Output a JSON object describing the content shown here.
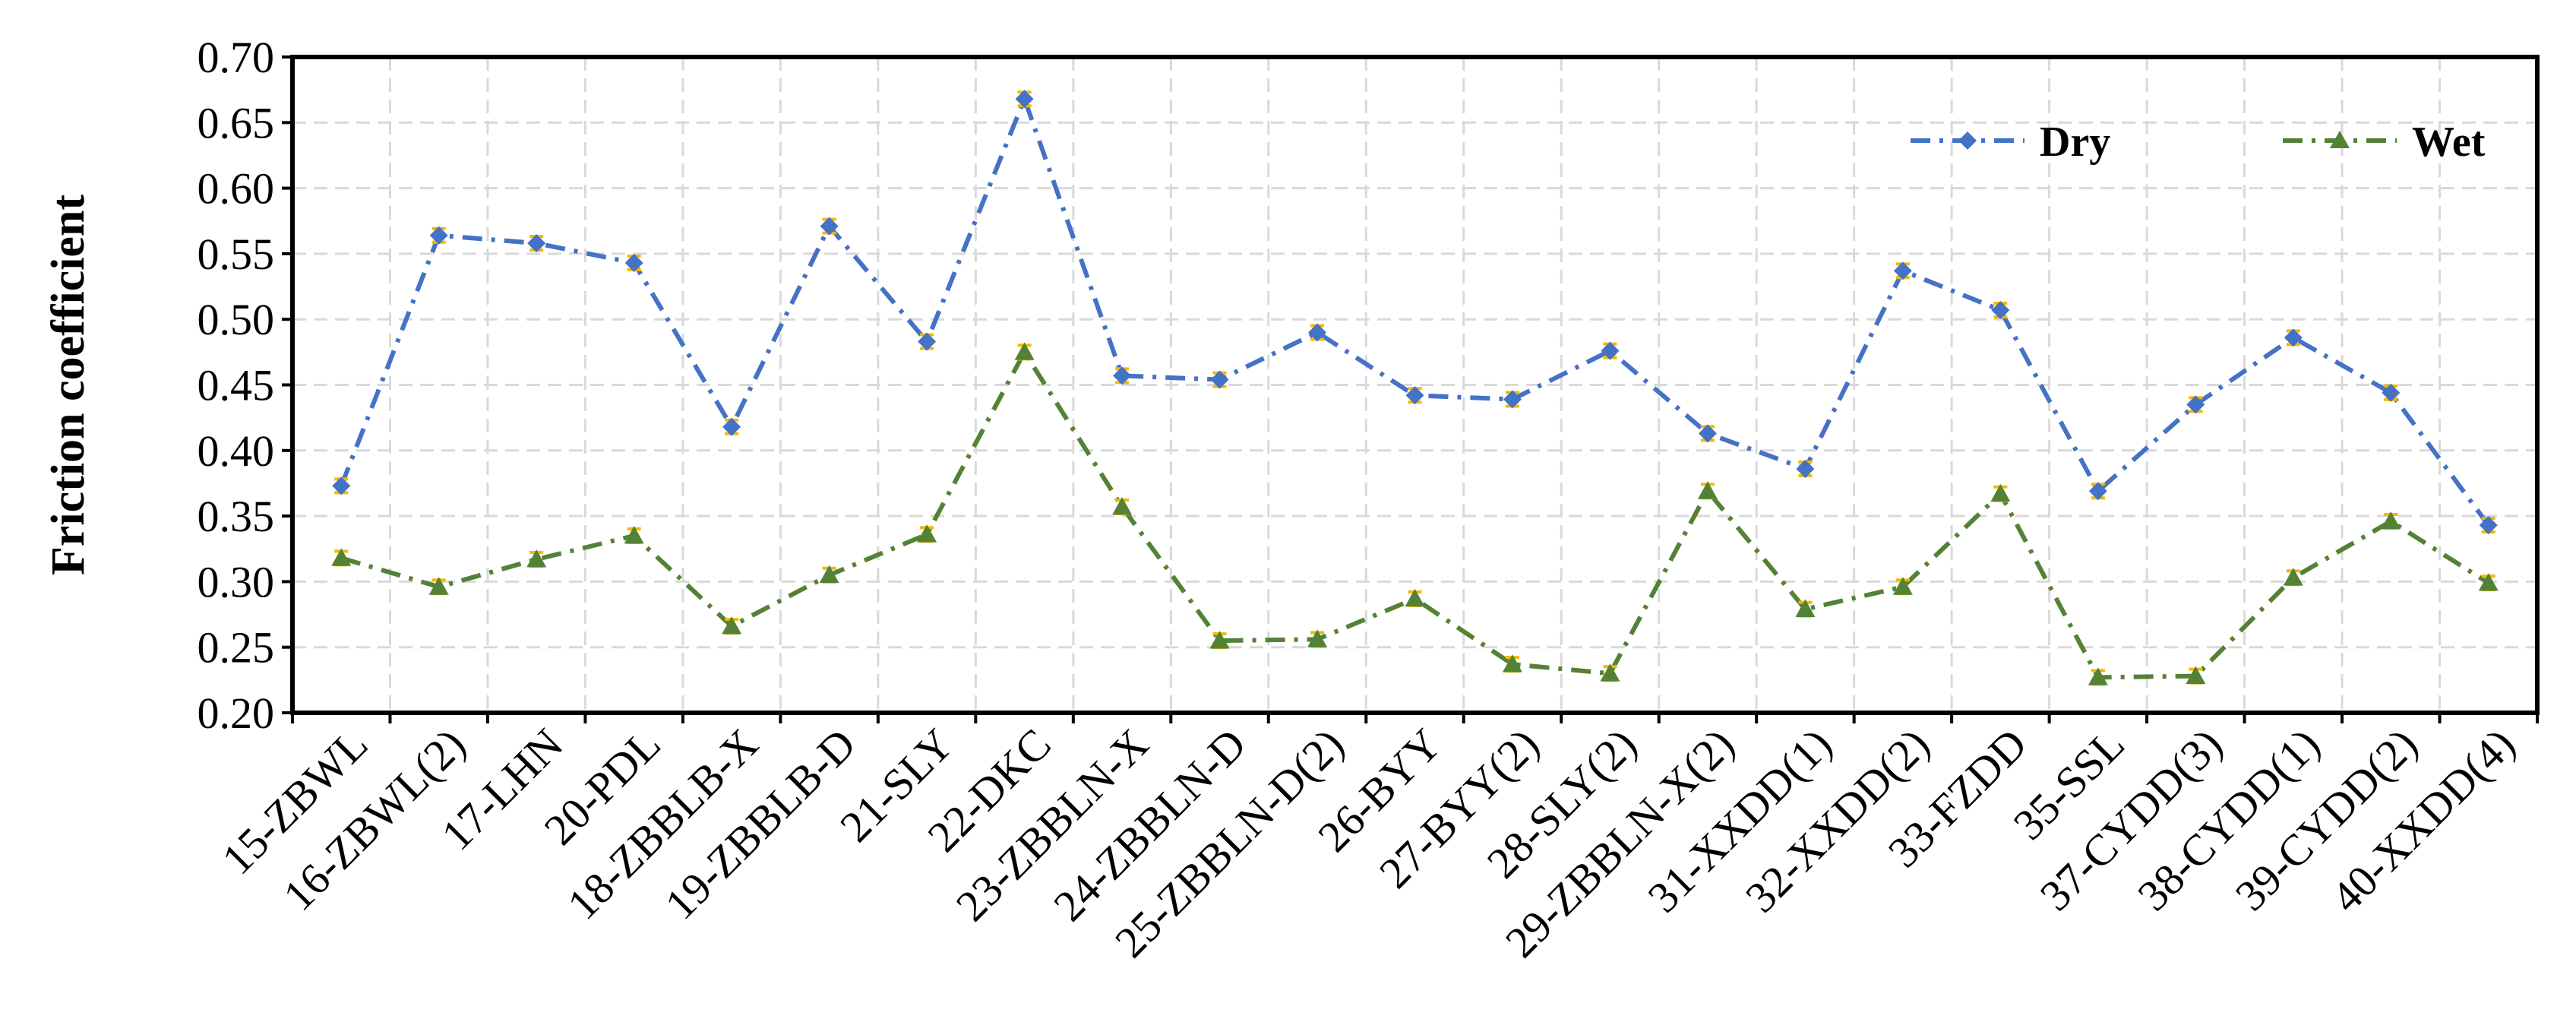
{
  "chart_data": {
    "type": "line",
    "title": "",
    "xlabel": "",
    "ylabel": "Friction coefficient",
    "ylim": [
      0.2,
      0.7
    ],
    "yticks": [
      "0.20",
      "0.25",
      "0.30",
      "0.35",
      "0.40",
      "0.45",
      "0.50",
      "0.55",
      "0.60",
      "0.65",
      "0.70"
    ],
    "grid": true,
    "legend_position": "top-right",
    "categories": [
      "15-ZBWL",
      "16-ZBWL(2)",
      "17-LHN",
      "20-PDL",
      "18-ZBBLB-X",
      "19-ZBBLB-D",
      "21-SLY",
      "22-DKC",
      "23-ZBBLN-X",
      "24-ZBBLN-D",
      "25-ZBBLN-D(2)",
      "26-BYY",
      "27-BYY(2)",
      "28-SLY(2)",
      "29-ZBBLN-X(2)",
      "31-XXDD(1)",
      "32-XXDD(2)",
      "33-FZDD",
      "35-SSL",
      "37-CYDD(3)",
      "38-CYDD(1)",
      "39-CYDD(2)",
      "40-XXDD(4)"
    ],
    "series": [
      {
        "name": "Dry",
        "color": "#4472C4",
        "marker": "diamond",
        "values": [
          0.373,
          0.564,
          0.558,
          0.543,
          0.418,
          0.571,
          0.483,
          0.668,
          0.457,
          0.454,
          0.49,
          0.442,
          0.439,
          0.476,
          0.413,
          0.386,
          0.537,
          0.507,
          0.369,
          0.435,
          0.486,
          0.444,
          0.343
        ]
      },
      {
        "name": "Wet",
        "color": "#548235",
        "marker": "triangle",
        "values": [
          0.318,
          0.296,
          0.317,
          0.335,
          0.266,
          0.305,
          0.336,
          0.475,
          0.357,
          0.255,
          0.256,
          0.287,
          0.237,
          0.23,
          0.369,
          0.279,
          0.296,
          0.367,
          0.227,
          0.228,
          0.303,
          0.346,
          0.299
        ]
      }
    ],
    "error_bar_color": "#F5B800"
  }
}
